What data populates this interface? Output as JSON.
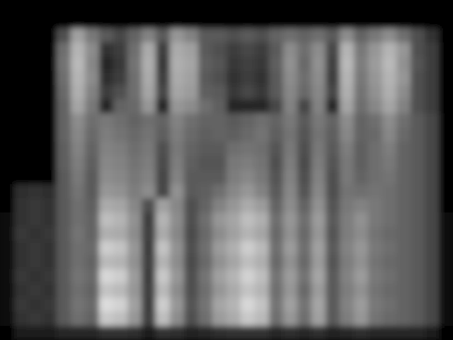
{
  "chart_data": {
    "type": "heatmap",
    "tick_labels": false,
    "cells": [
      [
        0,
        0,
        0,
        0,
        0,
        0,
        0,
        0,
        0,
        0,
        0,
        0,
        0,
        0,
        0,
        0,
        0,
        0,
        0,
        0,
        0,
        0,
        0,
        0,
        0,
        0,
        0,
        0,
        0,
        0,
        0,
        0
      ],
      [
        0,
        0,
        0,
        0,
        0,
        0,
        0,
        0,
        0,
        0,
        0,
        0,
        0,
        0,
        0,
        0,
        0,
        0,
        0,
        0,
        0,
        0,
        0,
        0,
        0,
        0,
        0,
        0,
        0,
        0,
        0,
        0
      ],
      [
        0,
        0,
        0,
        0,
        80,
        160,
        120,
        90,
        70,
        100,
        130,
        90,
        150,
        130,
        90,
        90,
        80,
        90,
        80,
        100,
        110,
        100,
        110,
        90,
        140,
        100,
        120,
        140,
        110,
        80,
        50,
        0
      ],
      [
        0,
        0,
        0,
        0,
        110,
        180,
        140,
        50,
        60,
        110,
        170,
        60,
        170,
        160,
        90,
        80,
        60,
        70,
        60,
        90,
        140,
        110,
        140,
        70,
        180,
        120,
        150,
        180,
        150,
        80,
        60,
        0
      ],
      [
        0,
        0,
        0,
        0,
        115,
        185,
        135,
        40,
        55,
        115,
        175,
        55,
        175,
        165,
        95,
        85,
        55,
        65,
        55,
        95,
        145,
        105,
        145,
        65,
        185,
        125,
        155,
        185,
        145,
        85,
        60,
        0
      ],
      [
        0,
        0,
        0,
        0,
        110,
        180,
        140,
        45,
        60,
        110,
        170,
        60,
        170,
        160,
        90,
        80,
        50,
        60,
        50,
        90,
        140,
        110,
        140,
        60,
        180,
        120,
        150,
        180,
        150,
        80,
        60,
        0
      ],
      [
        0,
        0,
        0,
        0,
        105,
        175,
        130,
        60,
        80,
        110,
        165,
        70,
        165,
        155,
        95,
        90,
        55,
        70,
        55,
        90,
        135,
        105,
        135,
        70,
        175,
        115,
        145,
        175,
        140,
        80,
        60,
        0
      ],
      [
        0,
        0,
        0,
        0,
        100,
        165,
        120,
        40,
        100,
        105,
        150,
        40,
        150,
        140,
        110,
        95,
        40,
        40,
        40,
        70,
        130,
        70,
        130,
        40,
        165,
        110,
        135,
        165,
        130,
        80,
        60,
        0
      ],
      [
        0,
        0,
        0,
        0,
        100,
        140,
        110,
        120,
        110,
        100,
        110,
        100,
        130,
        110,
        100,
        100,
        90,
        100,
        110,
        100,
        120,
        90,
        120,
        100,
        140,
        100,
        110,
        140,
        110,
        90,
        70,
        0
      ],
      [
        0,
        0,
        0,
        0,
        100,
        135,
        105,
        125,
        115,
        105,
        115,
        95,
        125,
        105,
        95,
        100,
        95,
        105,
        115,
        95,
        115,
        85,
        115,
        95,
        135,
        100,
        105,
        135,
        105,
        90,
        70,
        0
      ],
      [
        0,
        0,
        0,
        0,
        95,
        130,
        100,
        130,
        125,
        110,
        120,
        80,
        120,
        100,
        90,
        90,
        110,
        115,
        110,
        85,
        120,
        80,
        120,
        90,
        125,
        95,
        110,
        125,
        100,
        90,
        70,
        0
      ],
      [
        0,
        0,
        0,
        0,
        95,
        125,
        95,
        135,
        130,
        115,
        125,
        75,
        125,
        95,
        85,
        85,
        120,
        125,
        115,
        80,
        125,
        75,
        125,
        85,
        120,
        95,
        110,
        120,
        100,
        90,
        70,
        0
      ],
      [
        0,
        0,
        0,
        0,
        90,
        120,
        90,
        140,
        135,
        120,
        130,
        70,
        130,
        90,
        90,
        90,
        125,
        135,
        120,
        85,
        130,
        80,
        130,
        80,
        120,
        100,
        110,
        115,
        100,
        90,
        70,
        0
      ],
      [
        0,
        45,
        50,
        45,
        90,
        115,
        90,
        150,
        145,
        125,
        140,
        70,
        145,
        90,
        95,
        110,
        135,
        150,
        130,
        90,
        135,
        85,
        135,
        80,
        115,
        110,
        115,
        110,
        100,
        90,
        70,
        0
      ],
      [
        5,
        50,
        55,
        50,
        90,
        110,
        95,
        170,
        165,
        135,
        80,
        160,
        135,
        80,
        100,
        130,
        150,
        170,
        155,
        100,
        140,
        100,
        145,
        85,
        120,
        130,
        120,
        110,
        100,
        90,
        70,
        5
      ],
      [
        10,
        50,
        55,
        50,
        90,
        110,
        100,
        190,
        180,
        145,
        60,
        180,
        140,
        80,
        110,
        150,
        165,
        190,
        175,
        110,
        150,
        110,
        155,
        90,
        125,
        145,
        120,
        110,
        100,
        90,
        70,
        10
      ],
      [
        10,
        55,
        50,
        55,
        90,
        115,
        100,
        175,
        170,
        140,
        65,
        170,
        135,
        75,
        105,
        140,
        160,
        180,
        165,
        105,
        145,
        105,
        150,
        85,
        125,
        140,
        115,
        105,
        100,
        90,
        70,
        10
      ],
      [
        10,
        50,
        55,
        50,
        90,
        110,
        105,
        205,
        195,
        150,
        60,
        195,
        145,
        80,
        110,
        155,
        175,
        205,
        185,
        110,
        155,
        110,
        160,
        90,
        130,
        150,
        120,
        110,
        100,
        90,
        70,
        10
      ],
      [
        10,
        50,
        55,
        50,
        90,
        110,
        100,
        185,
        180,
        145,
        65,
        180,
        140,
        75,
        105,
        145,
        165,
        190,
        175,
        105,
        145,
        105,
        155,
        85,
        125,
        145,
        115,
        105,
        100,
        90,
        70,
        10
      ],
      [
        10,
        55,
        50,
        55,
        90,
        115,
        105,
        215,
        205,
        155,
        60,
        200,
        150,
        80,
        115,
        160,
        180,
        210,
        190,
        115,
        155,
        115,
        165,
        90,
        130,
        155,
        120,
        110,
        100,
        90,
        70,
        10
      ],
      [
        10,
        50,
        55,
        50,
        90,
        110,
        100,
        195,
        185,
        150,
        65,
        185,
        140,
        80,
        110,
        150,
        170,
        195,
        180,
        110,
        150,
        105,
        155,
        90,
        125,
        145,
        115,
        105,
        100,
        90,
        70,
        10
      ],
      [
        10,
        55,
        50,
        55,
        90,
        115,
        105,
        220,
        210,
        160,
        60,
        205,
        150,
        85,
        115,
        165,
        180,
        215,
        195,
        115,
        160,
        115,
        165,
        90,
        130,
        155,
        120,
        110,
        100,
        90,
        70,
        10
      ],
      [
        10,
        50,
        55,
        50,
        90,
        110,
        100,
        200,
        190,
        150,
        65,
        190,
        140,
        80,
        110,
        155,
        170,
        200,
        185,
        110,
        150,
        110,
        160,
        90,
        125,
        150,
        115,
        105,
        100,
        90,
        70,
        10
      ],
      [
        0,
        30,
        30,
        30,
        40,
        40,
        40,
        50,
        50,
        45,
        30,
        50,
        45,
        35,
        40,
        45,
        50,
        50,
        50,
        40,
        45,
        40,
        45,
        35,
        40,
        45,
        40,
        40,
        40,
        40,
        30,
        0
      ]
    ]
  }
}
